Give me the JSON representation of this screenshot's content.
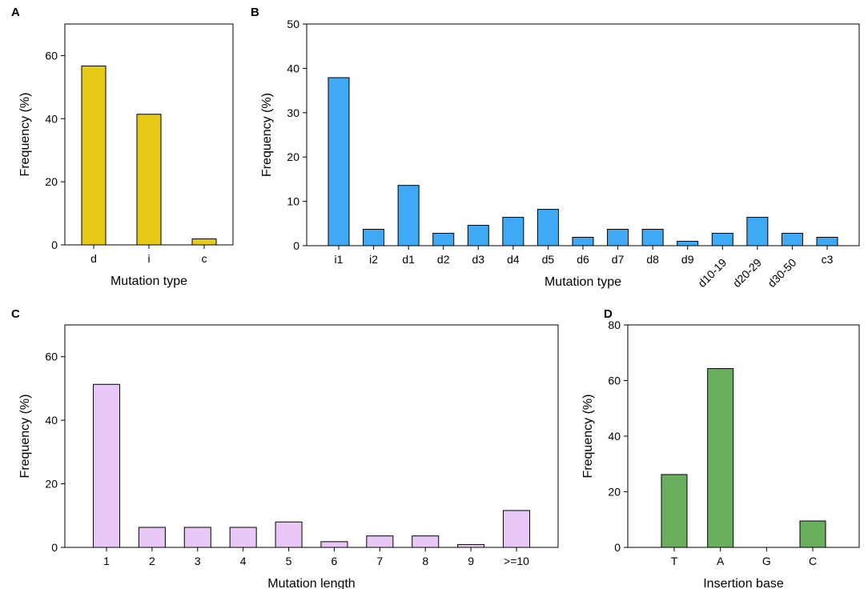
{
  "chart_data": [
    {
      "panel": "A",
      "type": "bar",
      "categories": [
        "d",
        "i",
        "c"
      ],
      "values": [
        56.7,
        41.4,
        1.9
      ],
      "xlabel": "Mutation type",
      "ylabel": "Frequency (%)",
      "ylim": [
        0,
        70
      ],
      "yticks": [
        0,
        20,
        40,
        60
      ],
      "color": "#e6c917"
    },
    {
      "panel": "B",
      "type": "bar",
      "categories": [
        "i1",
        "i2",
        "d1",
        "d2",
        "d3",
        "d4",
        "d5",
        "d6",
        "d7",
        "d8",
        "d9",
        "d10-19",
        "d20-29",
        "d30-50",
        "c3"
      ],
      "values": [
        37.9,
        3.7,
        13.6,
        2.8,
        4.6,
        6.4,
        8.2,
        1.9,
        3.7,
        3.7,
        1.0,
        2.8,
        6.4,
        2.8,
        1.9
      ],
      "xlabel": "Mutation type",
      "ylabel": "Frequency (%)",
      "ylim": [
        0,
        50
      ],
      "yticks": [
        0,
        10,
        20,
        30,
        40,
        50
      ],
      "color": "#3fa9f5"
    },
    {
      "panel": "C",
      "type": "bar",
      "categories": [
        "1",
        "2",
        "3",
        "4",
        "5",
        "6",
        "7",
        "8",
        "9",
        ">=10"
      ],
      "values": [
        51.3,
        6.3,
        6.3,
        6.3,
        8.0,
        1.8,
        3.6,
        3.6,
        0.9,
        11.6
      ],
      "xlabel": "Mutation length",
      "ylabel": "Frequency (%)",
      "ylim": [
        0,
        70
      ],
      "yticks": [
        0,
        20,
        40,
        60
      ],
      "color": "#e9c8f7"
    },
    {
      "panel": "D",
      "type": "bar",
      "categories": [
        "T",
        "A",
        "G",
        "C"
      ],
      "values": [
        26.2,
        64.3,
        0,
        9.5
      ],
      "xlabel": "Insertion base",
      "ylabel": "Frequency (%)",
      "ylim": [
        0,
        80
      ],
      "yticks": [
        0,
        20,
        40,
        60,
        80
      ],
      "color": "#6aaf5e"
    }
  ]
}
